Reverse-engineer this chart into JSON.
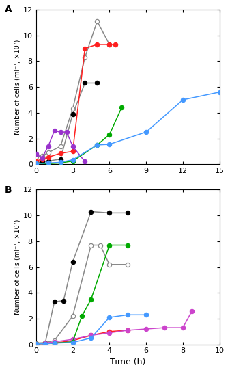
{
  "panel_A": {
    "gray_open": {
      "x": [
        0,
        0.5,
        1,
        2,
        3,
        4,
        5,
        6
      ],
      "y": [
        0.6,
        0.65,
        0.9,
        1.4,
        4.3,
        8.3,
        11.1,
        9.3
      ]
    },
    "black_filled": {
      "x": [
        0,
        0.5,
        1,
        2,
        3,
        4,
        5
      ],
      "y": [
        0.15,
        0.15,
        0.25,
        0.4,
        3.9,
        6.3,
        6.3
      ]
    },
    "red_filled": {
      "x": [
        0,
        0.5,
        1,
        2,
        3,
        4,
        5,
        6,
        6.5
      ],
      "y": [
        0.25,
        0.4,
        0.55,
        0.85,
        1.0,
        9.0,
        9.3,
        9.3,
        9.3
      ]
    },
    "purple_filled": {
      "x": [
        0,
        0.5,
        1,
        1.5,
        2,
        2.5,
        3,
        4
      ],
      "y": [
        0.8,
        0.5,
        1.4,
        2.6,
        2.5,
        2.5,
        1.4,
        0.2
      ]
    },
    "green_filled": {
      "x": [
        0,
        1,
        2,
        3,
        5,
        6,
        7
      ],
      "y": [
        0.05,
        0.05,
        0.1,
        0.25,
        1.5,
        2.3,
        4.4
      ]
    },
    "blue_filled": {
      "x": [
        0,
        1,
        2,
        3,
        5,
        6,
        9,
        12,
        15
      ],
      "y": [
        0.05,
        0.1,
        0.15,
        0.35,
        1.5,
        1.55,
        2.5,
        5.0,
        5.6
      ]
    },
    "xlim": [
      0,
      15
    ],
    "ylim": [
      0,
      12
    ],
    "xticks": [
      0,
      3,
      6,
      9,
      12,
      15
    ],
    "yticks": [
      0,
      2,
      4,
      6,
      8,
      10,
      12
    ]
  },
  "panel_B": {
    "gray_open": {
      "x": [
        0,
        0.5,
        1,
        2,
        3,
        3.5,
        4,
        5
      ],
      "y": [
        0.1,
        0.15,
        0.3,
        2.2,
        7.7,
        7.7,
        6.2,
        6.2
      ]
    },
    "black_filled": {
      "x": [
        0,
        0.5,
        1,
        1.5,
        2,
        3,
        4,
        5
      ],
      "y": [
        0.05,
        0.1,
        3.3,
        3.4,
        6.4,
        10.3,
        10.2,
        10.2
      ]
    },
    "red_filled": {
      "x": [
        0,
        0.5,
        1,
        2,
        3,
        4,
        5
      ],
      "y": [
        0.05,
        0.05,
        0.1,
        0.3,
        0.7,
        1.0,
        1.1
      ]
    },
    "purple_filled": {
      "x": [
        0,
        0.5,
        1,
        2,
        3,
        4,
        5,
        6,
        7,
        8,
        8.5
      ],
      "y": [
        0.05,
        0.1,
        0.2,
        0.4,
        0.7,
        0.9,
        1.1,
        1.2,
        1.3,
        1.3,
        2.6
      ]
    },
    "green_filled": {
      "x": [
        0,
        1,
        2,
        2.5,
        3,
        4,
        5
      ],
      "y": [
        0.05,
        0.1,
        0.2,
        2.2,
        3.5,
        7.7,
        7.7
      ]
    },
    "blue_filled": {
      "x": [
        0,
        0.5,
        1,
        2,
        3,
        4,
        5,
        6
      ],
      "y": [
        0.05,
        0.05,
        0.1,
        0.15,
        0.5,
        2.1,
        2.3,
        2.3
      ]
    },
    "xlim": [
      0,
      10
    ],
    "ylim": [
      0,
      12
    ],
    "xticks": [
      0,
      2,
      4,
      6,
      8,
      10
    ],
    "yticks": [
      0,
      2,
      4,
      6,
      8,
      10,
      12
    ]
  },
  "ylabel": "Number of cells (ml⁻¹, ×10⁷)",
  "xlabel": "Time (h)",
  "colors": {
    "gray_line": "#888888",
    "black": "#000000",
    "red": "#ff2020",
    "purple_A": "#9932CC",
    "purple_B": "#cc44cc",
    "green": "#00aa00",
    "blue": "#4499ff"
  },
  "marker_size": 4.5,
  "line_width": 1.1
}
